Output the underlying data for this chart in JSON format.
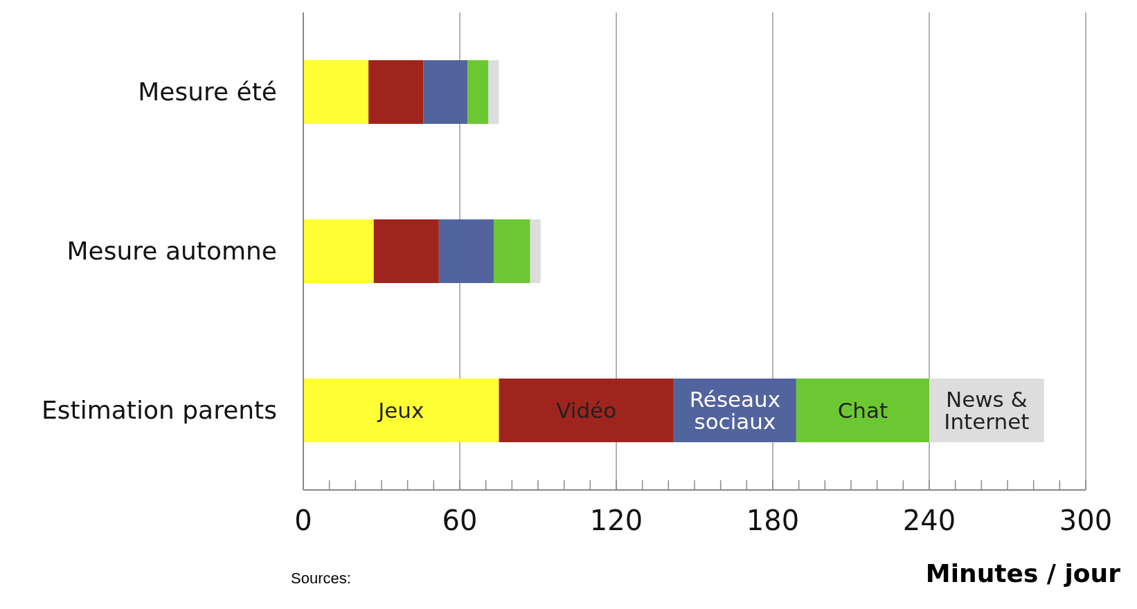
{
  "chart_data": {
    "type": "bar",
    "orientation": "horizontal",
    "stacked": true,
    "categories": [
      "Mesure été",
      "Mesure automne",
      "Estimation parents"
    ],
    "series": [
      {
        "name": "Jeux",
        "color": "#ffff33",
        "values": [
          25,
          27,
          75
        ]
      },
      {
        "name": "Vidéo",
        "color": "#a0241e",
        "values": [
          21,
          25,
          67
        ]
      },
      {
        "name": "Réseaux sociaux",
        "color": "#52649e",
        "values": [
          17,
          21,
          47
        ]
      },
      {
        "name": "Chat",
        "color": "#6cc832",
        "values": [
          8,
          14,
          51
        ]
      },
      {
        "name": "News & Internet",
        "color": "#dddddd",
        "values": [
          4,
          4,
          44
        ]
      }
    ],
    "xlim": [
      0,
      300
    ],
    "xticks": [
      0,
      {
        "value": 10,
        "label": null
      },
      {
        "value": 20,
        "label": null
      },
      {
        "value": 30,
        "label": null
      },
      {
        "value": 40,
        "label": null
      },
      {
        "value": 50,
        "label": null
      },
      60,
      {
        "value": 70,
        "label": null
      },
      {
        "value": 80,
        "label": null
      },
      {
        "value": 90,
        "label": null
      },
      {
        "value": 100,
        "label": null
      },
      {
        "value": 110,
        "label": null
      },
      120,
      {
        "value": 130,
        "label": null
      },
      {
        "value": 140,
        "label": null
      },
      {
        "value": 150,
        "label": null
      },
      {
        "value": 160,
        "label": null
      },
      {
        "value": 170,
        "label": null
      },
      180,
      {
        "value": 190,
        "label": null
      },
      {
        "value": 200,
        "label": null
      },
      {
        "value": 210,
        "label": null
      },
      {
        "value": 220,
        "label": null
      },
      {
        "value": 230,
        "label": null
      },
      240,
      {
        "value": 250,
        "label": null
      },
      {
        "value": 260,
        "label": null
      },
      {
        "value": 270,
        "label": null
      },
      {
        "value": 280,
        "label": null
      },
      {
        "value": 290,
        "label": null
      },
      300
    ],
    "grid": "x",
    "xlabel": "Minutes / jour",
    "annotations": [
      "Sources:"
    ]
  }
}
